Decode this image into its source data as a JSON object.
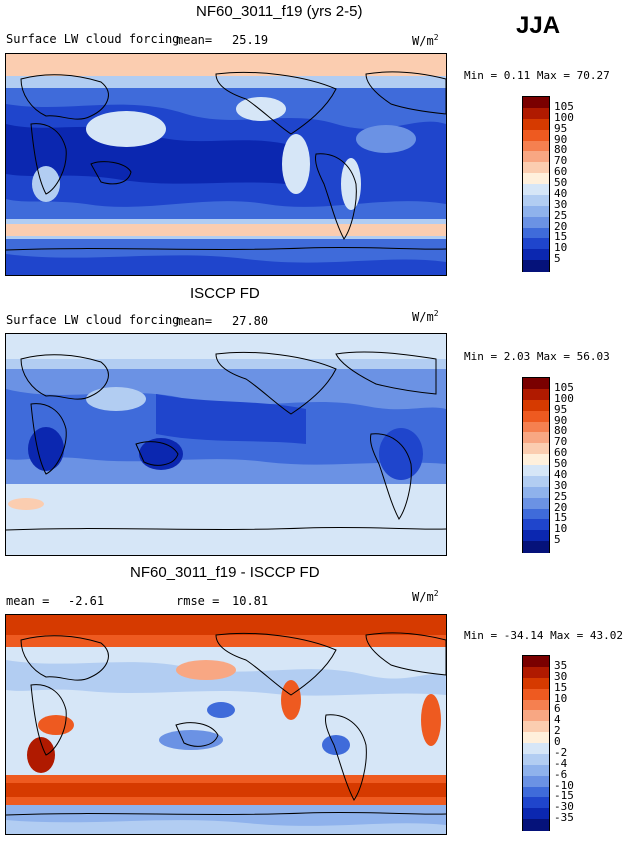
{
  "season": "JJA",
  "panels": [
    {
      "title": "NF60_3011_f19 (yrs 2-5)",
      "field_label": "Surface LW cloud forcing",
      "mean_label": "mean=",
      "mean_value": "25.19",
      "units": "W/m",
      "units_exp": "2",
      "stats": "Min =    0.11 Max =   70.27",
      "colorbar": {
        "ticks": [
          "105",
          "100",
          "95",
          "90",
          "80",
          "70",
          "60",
          "50",
          "40",
          "30",
          "25",
          "20",
          "15",
          "10",
          "5"
        ],
        "colors": [
          "#7a0000",
          "#b01a00",
          "#d63a00",
          "#ee5a20",
          "#f58050",
          "#f8a783",
          "#fbcdb0",
          "#fff0dc",
          "#d6e6f7",
          "#b2cdf2",
          "#8fb2ec",
          "#6b92e4",
          "#3f6bda",
          "#1f45cc",
          "#0b27b0",
          "#05127a"
        ]
      }
    },
    {
      "title": "ISCCP FD",
      "field_label": "Surface LW cloud forcing",
      "mean_label": "mean=",
      "mean_value": "27.80",
      "units": "W/m",
      "units_exp": "2",
      "stats": "Min =    2.03 Max =   56.03",
      "colorbar": {
        "ticks": [
          "105",
          "100",
          "95",
          "90",
          "80",
          "70",
          "60",
          "50",
          "40",
          "30",
          "25",
          "20",
          "15",
          "10",
          "5"
        ],
        "colors": [
          "#7a0000",
          "#b01a00",
          "#d63a00",
          "#ee5a20",
          "#f58050",
          "#f8a783",
          "#fbcdb0",
          "#fff0dc",
          "#d6e6f7",
          "#b2cdf2",
          "#8fb2ec",
          "#6b92e4",
          "#3f6bda",
          "#1f45cc",
          "#0b27b0",
          "#05127a"
        ]
      }
    },
    {
      "title": "NF60_3011_f19 - ISCCP FD",
      "mean_label": "mean =",
      "mean_value": "-2.61",
      "rmse_label": "rmse =",
      "rmse_value": "10.81",
      "units": "W/m",
      "units_exp": "2",
      "stats": "Min =  -34.14 Max =   43.02",
      "colorbar": {
        "ticks": [
          "35",
          "30",
          "15",
          "10",
          "6",
          "4",
          "2",
          "0",
          "-2",
          "-4",
          "-6",
          "-10",
          "-15",
          "-30",
          "-35"
        ],
        "colors": [
          "#7a0000",
          "#b01a00",
          "#d63a00",
          "#ee5a20",
          "#f58050",
          "#f8a783",
          "#fbcdb0",
          "#fff0dc",
          "#d6e6f7",
          "#b2cdf2",
          "#8fb2ec",
          "#6b92e4",
          "#3f6bda",
          "#1f45cc",
          "#0b27b0",
          "#05127a"
        ]
      }
    }
  ]
}
